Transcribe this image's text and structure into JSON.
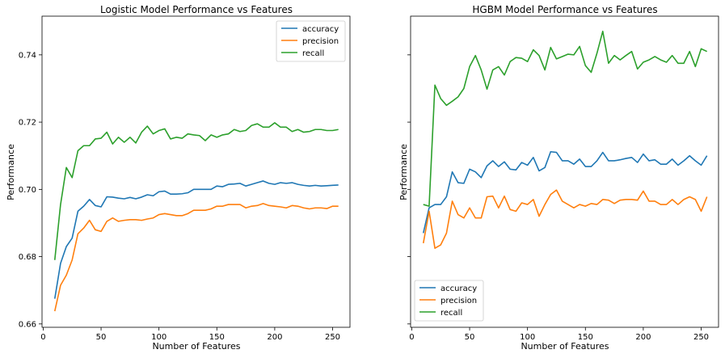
{
  "chart_data": [
    {
      "type": "line",
      "title": "Logistic Model Performance vs Features",
      "xlabel": "Number of Features",
      "ylabel": "Performance",
      "xlim": [
        -1,
        265
      ],
      "ylim": [
        0.659,
        0.7515
      ],
      "xticks": [
        0,
        50,
        100,
        150,
        200,
        250
      ],
      "xtick_labels": [
        "0",
        "50",
        "100",
        "150",
        "200",
        "250"
      ],
      "yticks": [
        0.66,
        0.68,
        0.7,
        0.72,
        0.74
      ],
      "ytick_labels": [
        "0.66",
        "0.68",
        "0.70",
        "0.72",
        "0.74"
      ],
      "legend_position": "top-right",
      "grid": false,
      "x": [
        10,
        15,
        20,
        25,
        30,
        35,
        40,
        45,
        50,
        55,
        60,
        65,
        70,
        75,
        80,
        85,
        90,
        95,
        100,
        105,
        110,
        115,
        120,
        125,
        130,
        135,
        140,
        145,
        150,
        155,
        160,
        165,
        170,
        175,
        180,
        185,
        190,
        195,
        200,
        205,
        210,
        215,
        220,
        225,
        230,
        235,
        240,
        245,
        250,
        255
      ],
      "series": [
        {
          "name": "accuracy",
          "color": "#1f77b4",
          "values": [
            0.6675,
            0.678,
            0.683,
            0.6855,
            0.6935,
            0.695,
            0.697,
            0.6952,
            0.6948,
            0.6978,
            0.6977,
            0.6974,
            0.6972,
            0.6976,
            0.6972,
            0.6977,
            0.6984,
            0.6981,
            0.6993,
            0.6995,
            0.6986,
            0.6986,
            0.6987,
            0.699,
            0.7,
            0.7,
            0.7,
            0.7,
            0.701,
            0.7008,
            0.7015,
            0.7016,
            0.7018,
            0.701,
            0.7015,
            0.702,
            0.7025,
            0.7018,
            0.7015,
            0.702,
            0.7018,
            0.702,
            0.7015,
            0.7012,
            0.701,
            0.7012,
            0.701,
            0.7011,
            0.7012,
            0.7013
          ]
        },
        {
          "name": "precision",
          "color": "#ff7f0e",
          "values": [
            0.6638,
            0.6715,
            0.6745,
            0.679,
            0.6868,
            0.6885,
            0.6908,
            0.688,
            0.6875,
            0.6905,
            0.6915,
            0.6905,
            0.6908,
            0.691,
            0.691,
            0.6908,
            0.6912,
            0.6915,
            0.6925,
            0.6928,
            0.6925,
            0.6922,
            0.6922,
            0.6928,
            0.6938,
            0.6938,
            0.6938,
            0.6942,
            0.695,
            0.695,
            0.6955,
            0.6955,
            0.6955,
            0.6945,
            0.695,
            0.6952,
            0.6958,
            0.6952,
            0.695,
            0.6948,
            0.6945,
            0.6952,
            0.695,
            0.6945,
            0.6942,
            0.6945,
            0.6945,
            0.6943,
            0.695,
            0.695
          ]
        },
        {
          "name": "recall",
          "color": "#2ca02c",
          "values": [
            0.679,
            0.6955,
            0.7065,
            0.7035,
            0.7115,
            0.713,
            0.713,
            0.715,
            0.7152,
            0.717,
            0.7135,
            0.7155,
            0.714,
            0.7155,
            0.7138,
            0.717,
            0.7188,
            0.7165,
            0.7175,
            0.718,
            0.715,
            0.7155,
            0.7152,
            0.7165,
            0.7162,
            0.716,
            0.7145,
            0.7162,
            0.7155,
            0.7162,
            0.7165,
            0.7178,
            0.7172,
            0.7175,
            0.719,
            0.7195,
            0.7185,
            0.7185,
            0.7198,
            0.7185,
            0.7185,
            0.7172,
            0.7178,
            0.717,
            0.7172,
            0.7178,
            0.7178,
            0.7175,
            0.7175,
            0.7178
          ]
        }
      ]
    },
    {
      "type": "line",
      "title": "HGBM Model Performance vs Features",
      "xlabel": "Number of Features",
      "ylabel": "Performance",
      "xlim": [
        -1,
        265
      ],
      "ylim": [
        0.659,
        0.7515
      ],
      "xticks": [
        0,
        50,
        100,
        150,
        200,
        250
      ],
      "xtick_labels": [
        "0",
        "50",
        "100",
        "150",
        "200",
        "250"
      ],
      "yticks": [
        0.66,
        0.68,
        0.7,
        0.72,
        0.74
      ],
      "ytick_labels": [],
      "legend_position": "bottom-left",
      "grid": false,
      "x": [
        10,
        15,
        20,
        25,
        30,
        35,
        40,
        45,
        50,
        55,
        60,
        65,
        70,
        75,
        80,
        85,
        90,
        95,
        100,
        105,
        110,
        115,
        120,
        125,
        130,
        135,
        140,
        145,
        150,
        155,
        160,
        165,
        170,
        175,
        180,
        185,
        190,
        195,
        200,
        205,
        210,
        215,
        220,
        225,
        230,
        235,
        240,
        245,
        250,
        255
      ],
      "series": [
        {
          "name": "accuracy",
          "color": "#1f77b4",
          "values": [
            0.687,
            0.6945,
            0.6955,
            0.6955,
            0.6978,
            0.7052,
            0.702,
            0.7018,
            0.706,
            0.7052,
            0.7035,
            0.707,
            0.7085,
            0.7068,
            0.7082,
            0.706,
            0.7058,
            0.708,
            0.7072,
            0.7095,
            0.7055,
            0.7065,
            0.7112,
            0.711,
            0.7085,
            0.7085,
            0.7075,
            0.709,
            0.7068,
            0.7068,
            0.7085,
            0.711,
            0.7085,
            0.7085,
            0.7088,
            0.7092,
            0.7095,
            0.708,
            0.7105,
            0.7085,
            0.7088,
            0.7075,
            0.7075,
            0.709,
            0.7072,
            0.7085,
            0.71,
            0.7085,
            0.7072,
            0.71
          ]
        },
        {
          "name": "precision",
          "color": "#ff7f0e",
          "values": [
            0.684,
            0.6935,
            0.6825,
            0.6835,
            0.687,
            0.6965,
            0.6925,
            0.6915,
            0.6945,
            0.6915,
            0.6915,
            0.6978,
            0.698,
            0.6945,
            0.698,
            0.694,
            0.6935,
            0.696,
            0.6955,
            0.697,
            0.692,
            0.6955,
            0.6985,
            0.6998,
            0.6965,
            0.6955,
            0.6945,
            0.6955,
            0.695,
            0.6958,
            0.6955,
            0.697,
            0.6968,
            0.6958,
            0.6968,
            0.697,
            0.697,
            0.6968,
            0.6995,
            0.6965,
            0.6965,
            0.6955,
            0.6955,
            0.697,
            0.6955,
            0.697,
            0.6978,
            0.697,
            0.6935,
            0.6978
          ]
        },
        {
          "name": "recall",
          "color": "#2ca02c",
          "values": [
            0.6955,
            0.695,
            0.731,
            0.727,
            0.725,
            0.7262,
            0.7275,
            0.73,
            0.7365,
            0.7398,
            0.7355,
            0.7298,
            0.7355,
            0.7365,
            0.734,
            0.738,
            0.7392,
            0.739,
            0.738,
            0.7415,
            0.7398,
            0.7355,
            0.7422,
            0.7388,
            0.7395,
            0.7402,
            0.74,
            0.7425,
            0.7368,
            0.7348,
            0.7405,
            0.747,
            0.7375,
            0.7398,
            0.7385,
            0.7398,
            0.741,
            0.7358,
            0.7378,
            0.7385,
            0.7395,
            0.7385,
            0.7378,
            0.7398,
            0.7375,
            0.7375,
            0.741,
            0.7365,
            0.7418,
            0.741
          ]
        }
      ]
    }
  ]
}
